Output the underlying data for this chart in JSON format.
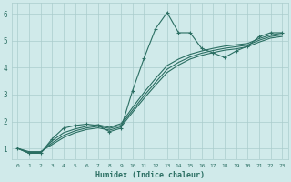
{
  "xlabel": "Humidex (Indice chaleur)",
  "bg_color": "#d0eaea",
  "grid_color": "#aacccc",
  "line_color": "#2a6e62",
  "xlim": [
    -0.5,
    23.5
  ],
  "ylim": [
    0.6,
    6.4
  ],
  "xticks": [
    0,
    1,
    2,
    3,
    4,
    5,
    6,
    7,
    8,
    9,
    10,
    11,
    12,
    13,
    14,
    15,
    16,
    17,
    18,
    19,
    20,
    21,
    22,
    23
  ],
  "yticks": [
    1,
    2,
    3,
    4,
    5,
    6
  ],
  "main_y": [
    1.0,
    0.82,
    0.82,
    1.35,
    1.75,
    1.85,
    1.9,
    1.85,
    1.62,
    1.75,
    3.15,
    4.35,
    5.45,
    6.05,
    5.3,
    5.3,
    4.72,
    4.55,
    4.38,
    4.62,
    4.8,
    5.15,
    5.3,
    5.3
  ],
  "line2_y": [
    1.0,
    0.82,
    0.82,
    1.28,
    1.58,
    1.72,
    1.82,
    1.88,
    1.78,
    1.92,
    2.52,
    3.08,
    3.6,
    4.08,
    4.32,
    4.5,
    4.62,
    4.72,
    4.8,
    4.85,
    4.9,
    5.08,
    5.22,
    5.28
  ],
  "line3_y": [
    1.0,
    0.85,
    0.85,
    1.2,
    1.48,
    1.65,
    1.76,
    1.82,
    1.74,
    1.86,
    2.42,
    2.96,
    3.46,
    3.94,
    4.2,
    4.4,
    4.54,
    4.64,
    4.72,
    4.78,
    4.84,
    5.02,
    5.16,
    5.22
  ],
  "line4_y": [
    1.0,
    0.88,
    0.88,
    1.14,
    1.4,
    1.58,
    1.7,
    1.76,
    1.68,
    1.8,
    2.34,
    2.86,
    3.35,
    3.82,
    4.1,
    4.32,
    4.46,
    4.56,
    4.65,
    4.7,
    4.78,
    4.95,
    5.1,
    5.16
  ]
}
